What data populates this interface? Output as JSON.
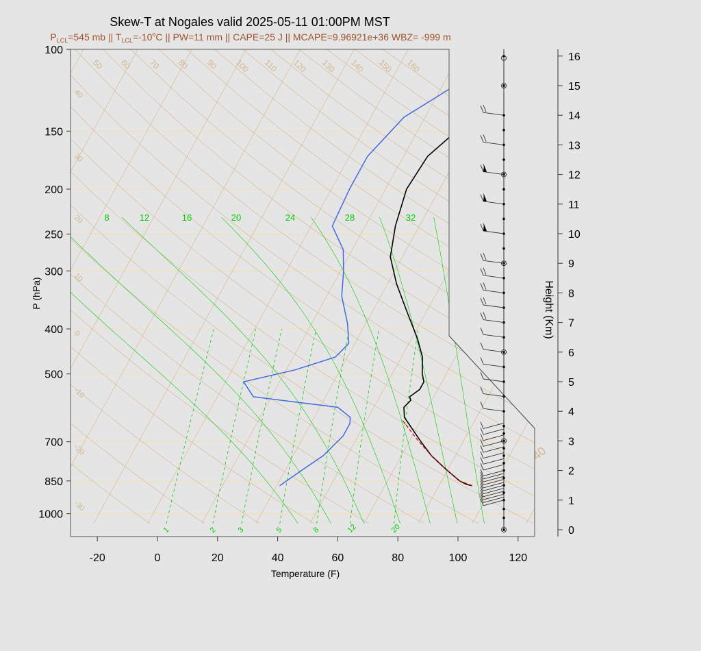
{
  "title": "Skew-T at Nogales valid 2025-05-11 01:00PM MST",
  "subtitle": {
    "p_lcl": "=545 mb || T",
    "t_lcl": "=-10",
    "deg": "o",
    "rest": "C || PW=11 mm || CAPE=25 J || MCAPE=9.96921e+36 WBZ= -999 m",
    "p_sym": "P",
    "t_sym": "T",
    "lcl_sub": "LCL"
  },
  "colors": {
    "bg": "#e5e5e5",
    "title": "#000000",
    "subtitle": "#a0522d",
    "temp": "#000000",
    "dew": "#4169e1",
    "parcel": "#cc0000",
    "mix": "#00cc00",
    "grid": "#d2b48c",
    "isobar": "#f5deb3"
  },
  "chart_data": {
    "type": "line",
    "xlabel": "Temperature (F)",
    "ylabel": "P (hPa)",
    "y2label": "Height (Km)",
    "x_ticks": [
      "-20",
      "0",
      "20",
      "40",
      "60",
      "80",
      "100",
      "120"
    ],
    "x_tick_values": [
      -20,
      0,
      20,
      40,
      60,
      80,
      100,
      120
    ],
    "p_ticks": [
      "100",
      "150",
      "200",
      "250",
      "300",
      "400",
      "500",
      "700",
      "850",
      "1000"
    ],
    "p_tick_values": [
      100,
      150,
      200,
      250,
      300,
      400,
      500,
      700,
      850,
      1000
    ],
    "height_ticks": [
      "0",
      "1",
      "2",
      "3",
      "4",
      "5",
      "6",
      "7",
      "8",
      "9",
      "10",
      "11",
      "12",
      "13",
      "14",
      "15",
      "16"
    ],
    "xlim": [
      -28,
      125
    ],
    "plim": [
      100,
      1050
    ],
    "skew_labels_top": [
      "50",
      "60",
      "70",
      "80",
      "90",
      "100",
      "110",
      "120",
      "130",
      "140",
      "150",
      "160"
    ],
    "skew_labels_left": [
      "40",
      "30",
      "20",
      "10",
      "0",
      "-10",
      "-20",
      "-30"
    ],
    "skew_labels_right": [
      "-30",
      "-20",
      "-10",
      "0",
      "10",
      "20",
      "30",
      "40"
    ],
    "mixing_top_labels": [
      "8",
      "12",
      "16",
      "20",
      "24",
      "28",
      "32"
    ],
    "mixing_bottom_labels": [
      "1",
      "2",
      "3",
      "5",
      "8",
      "12",
      "20"
    ],
    "series": [
      {
        "name": "temperature",
        "points": [
          [
            97,
            870
          ],
          [
            95,
            865
          ],
          [
            92,
            850
          ],
          [
            85,
            800
          ],
          [
            78,
            750
          ],
          [
            72,
            700
          ],
          [
            62,
            620
          ],
          [
            60,
            590
          ],
          [
            61,
            570
          ],
          [
            60,
            560
          ],
          [
            62,
            540
          ],
          [
            62,
            520
          ],
          [
            60,
            500
          ],
          [
            57,
            460
          ],
          [
            52,
            420
          ],
          [
            44,
            370
          ],
          [
            35,
            320
          ],
          [
            28,
            280
          ],
          [
            24,
            240
          ],
          [
            21,
            200
          ],
          [
            22,
            170
          ],
          [
            27,
            150
          ],
          [
            35,
            130
          ],
          [
            50,
            100
          ]
        ]
      },
      {
        "name": "dewpoint",
        "points": [
          [
            33,
            870
          ],
          [
            38,
            800
          ],
          [
            42,
            750
          ],
          [
            45,
            680
          ],
          [
            45,
            640
          ],
          [
            44,
            620
          ],
          [
            38,
            590
          ],
          [
            8,
            560
          ],
          [
            2,
            520
          ],
          [
            17,
            490
          ],
          [
            28,
            460
          ],
          [
            30,
            430
          ],
          [
            26,
            390
          ],
          [
            19,
            340
          ],
          [
            15,
            300
          ],
          [
            11,
            270
          ],
          [
            3,
            240
          ],
          [
            2,
            200
          ],
          [
            2,
            170
          ],
          [
            7,
            140
          ],
          [
            21,
            115
          ],
          [
            28,
            100
          ]
        ]
      },
      {
        "name": "parcel",
        "points": [
          [
            97,
            870
          ],
          [
            92,
            850
          ],
          [
            85,
            800
          ],
          [
            78,
            750
          ],
          [
            70,
            690
          ],
          [
            62,
            630
          ]
        ]
      }
    ],
    "height_km_levels": [
      0,
      0.4,
      0.7,
      1,
      1.25,
      1.5,
      1.75,
      2,
      2.25,
      2.5,
      2.75,
      3,
      3.25,
      3.5,
      4,
      4.5,
      5,
      5.5,
      6,
      6.5,
      7,
      7.5,
      8,
      8.5,
      9,
      9.5,
      10,
      10.5,
      11,
      11.5,
      12,
      12.5,
      13,
      13.5,
      14,
      15,
      16
    ],
    "wind_barbs_km": [
      1,
      1.1,
      1.2,
      1.3,
      1.4,
      1.5,
      1.6,
      1.7,
      1.8,
      1.9,
      2,
      2.2,
      2.4,
      2.6,
      2.8,
      3,
      3.2,
      3.4,
      3.6,
      4,
      4.5,
      5,
      5.5,
      6,
      6.5,
      7,
      7.5,
      8,
      8.5,
      9,
      10,
      11,
      12,
      13,
      14
    ],
    "grid": true
  }
}
